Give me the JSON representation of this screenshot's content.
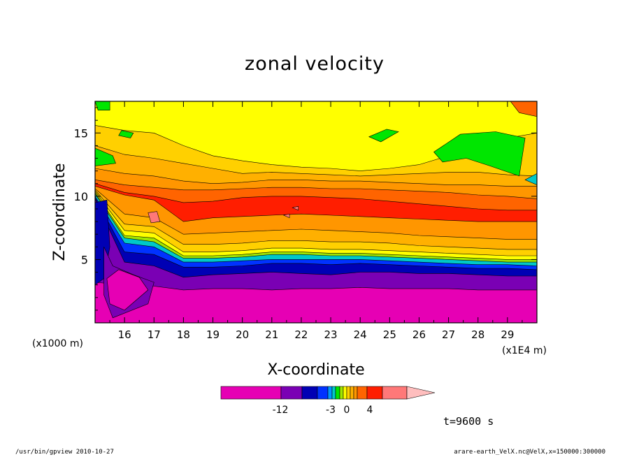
{
  "chart_data": {
    "type": "heatmap",
    "title": "zonal velocity",
    "xlabel": "X-coordinate",
    "ylabel": "Z-coordinate",
    "x_unit_label": "(x1E4 m)",
    "y_unit_label": "(x1000 m)",
    "x_ticks": [
      16,
      17,
      18,
      19,
      20,
      21,
      22,
      23,
      24,
      25,
      26,
      27,
      28,
      29
    ],
    "y_ticks": [
      5,
      10,
      15
    ],
    "xlim": [
      15,
      30
    ],
    "ylim": [
      0,
      17.5
    ],
    "colorbar": {
      "colors": [
        "#e600b4",
        "#7a00b4",
        "#0000b4",
        "#0032ff",
        "#0096ff",
        "#00c8c8",
        "#00e600",
        "#a0e600",
        "#ffff00",
        "#ffd000",
        "#ffb000",
        "#ff9600",
        "#ff6400",
        "#ff1e00",
        "#ff7878",
        "#ffbebe"
      ],
      "labels": [
        "-12",
        "-3",
        "0",
        "4"
      ]
    },
    "bands": [
      {
        "color": "#e600b4",
        "depth": [
          0.0,
          0.0,
          0.0,
          0.0,
          0.0,
          0.0,
          0.0,
          0.0,
          0.0,
          0.0,
          0.0,
          0.0,
          0.0,
          0.0,
          0.0,
          0.0
        ]
      },
      {
        "color": "#7a00b4",
        "depth": [
          3.2,
          3.0,
          2.9,
          2.6,
          2.7,
          2.7,
          2.6,
          2.7,
          2.7,
          2.8,
          2.7,
          2.7,
          2.7,
          2.6,
          2.6,
          2.6
        ]
      },
      {
        "color": "#0000b4",
        "depth": [
          9.8,
          4.8,
          4.5,
          3.6,
          3.8,
          3.9,
          4.0,
          3.9,
          3.8,
          4.0,
          4.0,
          3.9,
          3.9,
          3.8,
          3.7,
          3.7
        ]
      },
      {
        "color": "#0032ff",
        "depth": [
          9.9,
          5.6,
          5.4,
          4.4,
          4.4,
          4.5,
          4.7,
          4.7,
          4.6,
          4.7,
          4.6,
          4.5,
          4.4,
          4.3,
          4.3,
          4.2
        ]
      },
      {
        "color": "#00c8c8",
        "depth": [
          10.0,
          6.3,
          6.0,
          4.8,
          4.8,
          4.9,
          5.0,
          5.0,
          5.0,
          5.0,
          4.9,
          4.8,
          4.7,
          4.6,
          4.6,
          4.5
        ]
      },
      {
        "color": "#a0e600",
        "depth": [
          10.2,
          6.7,
          6.4,
          5.1,
          5.1,
          5.2,
          5.4,
          5.4,
          5.3,
          5.3,
          5.2,
          5.1,
          5.0,
          4.9,
          4.8,
          4.8
        ]
      },
      {
        "color": "#ffff00",
        "depth": [
          10.3,
          6.9,
          6.7,
          5.3,
          5.3,
          5.4,
          5.6,
          5.6,
          5.5,
          5.5,
          5.4,
          5.3,
          5.2,
          5.1,
          5.0,
          5.0
        ]
      },
      {
        "color": "#ffd000",
        "depth": [
          10.4,
          7.3,
          7.1,
          5.6,
          5.6,
          5.7,
          5.9,
          5.9,
          5.8,
          5.8,
          5.7,
          5.6,
          5.5,
          5.4,
          5.3,
          5.3
        ]
      },
      {
        "color": "#ffb000",
        "depth": [
          10.5,
          7.8,
          7.6,
          6.2,
          6.2,
          6.3,
          6.5,
          6.5,
          6.4,
          6.4,
          6.3,
          6.1,
          6.0,
          5.9,
          5.8,
          5.8
        ]
      },
      {
        "color": "#ff9600",
        "depth": [
          10.6,
          8.6,
          8.3,
          7.0,
          7.1,
          7.2,
          7.3,
          7.4,
          7.3,
          7.2,
          7.1,
          6.9,
          6.8,
          6.7,
          6.6,
          6.6
        ]
      },
      {
        "color": "#ff1e00",
        "depth": [
          10.8,
          10.1,
          9.7,
          8.0,
          8.3,
          8.4,
          8.5,
          8.6,
          8.5,
          8.4,
          8.3,
          8.2,
          8.1,
          8.0,
          8.0,
          8.0
        ]
      },
      {
        "color": "#ff6400",
        "depth": [
          11.0,
          10.3,
          10.0,
          9.5,
          9.6,
          9.9,
          10.0,
          10.0,
          9.9,
          9.8,
          9.6,
          9.4,
          9.2,
          9.0,
          8.9,
          8.9
        ]
      },
      {
        "color": "#ff9600",
        "depth": [
          11.3,
          10.9,
          10.7,
          10.5,
          10.5,
          10.6,
          10.7,
          10.7,
          10.6,
          10.6,
          10.5,
          10.4,
          10.3,
          10.1,
          10.0,
          9.8
        ]
      },
      {
        "color": "#ffb000",
        "depth": [
          12.2,
          11.8,
          11.6,
          11.2,
          11.0,
          11.1,
          11.3,
          11.3,
          11.2,
          11.2,
          11.1,
          11.0,
          10.9,
          10.9,
          10.8,
          10.8
        ]
      },
      {
        "color": "#ffd000",
        "depth": [
          14.0,
          13.3,
          13.0,
          12.6,
          12.2,
          11.8,
          11.9,
          11.8,
          11.7,
          11.6,
          11.7,
          11.8,
          11.9,
          11.9,
          11.7,
          11.6
        ]
      },
      {
        "color": "#ffff00",
        "depth": [
          15.6,
          15.2,
          15.0,
          14.0,
          13.2,
          12.8,
          12.5,
          12.3,
          12.2,
          12.0,
          12.2,
          12.5,
          13.2,
          14.0,
          14.6,
          15.0
        ]
      }
    ],
    "patches": [
      {
        "color": "#00e600",
        "points": [
          [
            15.0,
            17.5
          ],
          [
            15.5,
            17.5
          ],
          [
            15.5,
            16.8
          ],
          [
            15.1,
            16.8
          ]
        ]
      },
      {
        "color": "#00e600",
        "points": [
          [
            15.0,
            13.8
          ],
          [
            15.6,
            13.2
          ],
          [
            15.7,
            12.6
          ],
          [
            15.0,
            12.4
          ]
        ]
      },
      {
        "color": "#00e600",
        "points": [
          [
            15.9,
            15.2
          ],
          [
            16.3,
            15.0
          ],
          [
            16.2,
            14.6
          ],
          [
            15.8,
            14.8
          ]
        ]
      },
      {
        "color": "#00e600",
        "points": [
          [
            24.3,
            14.7
          ],
          [
            24.9,
            15.3
          ],
          [
            25.3,
            15.1
          ],
          [
            24.7,
            14.3
          ]
        ]
      },
      {
        "color": "#00e600",
        "points": [
          [
            26.5,
            13.5
          ],
          [
            27.4,
            14.9
          ],
          [
            28.6,
            15.1
          ],
          [
            29.6,
            14.6
          ],
          [
            29.4,
            11.6
          ],
          [
            28.4,
            12.4
          ],
          [
            27.6,
            13.0
          ],
          [
            26.8,
            12.7
          ]
        ]
      },
      {
        "color": "#00c8c8",
        "points": [
          [
            29.6,
            11.3
          ],
          [
            30.0,
            10.9
          ],
          [
            30.0,
            11.8
          ]
        ]
      },
      {
        "color": "#ff6400",
        "points": [
          [
            29.1,
            17.5
          ],
          [
            30.0,
            17.5
          ],
          [
            30.0,
            16.3
          ],
          [
            29.4,
            16.6
          ]
        ]
      },
      {
        "color": "#ff7878",
        "points": [
          [
            16.8,
            8.7
          ],
          [
            17.1,
            8.8
          ],
          [
            17.2,
            8.0
          ],
          [
            16.9,
            7.9
          ]
        ]
      },
      {
        "color": "#ff7878",
        "points": [
          [
            21.7,
            9.1
          ],
          [
            21.9,
            9.2
          ],
          [
            21.9,
            8.9
          ]
        ]
      },
      {
        "color": "#ff7878",
        "points": [
          [
            21.4,
            8.5
          ],
          [
            21.6,
            8.6
          ],
          [
            21.6,
            8.3
          ]
        ]
      },
      {
        "color": "#0000b4",
        "points": [
          [
            15.0,
            9.5
          ],
          [
            15.4,
            9.7
          ],
          [
            15.5,
            6.0
          ],
          [
            15.3,
            3.5
          ],
          [
            15.0,
            3.0
          ]
        ]
      },
      {
        "color": "#7a00b4",
        "points": [
          [
            15.3,
            6.0
          ],
          [
            15.6,
            4.5
          ],
          [
            16.3,
            3.8
          ],
          [
            17.0,
            3.2
          ],
          [
            16.8,
            1.5
          ],
          [
            15.6,
            0.4
          ],
          [
            15.3,
            2.2
          ]
        ]
      },
      {
        "color": "#e600b4",
        "points": [
          [
            15.4,
            3.5
          ],
          [
            15.8,
            4.2
          ],
          [
            16.5,
            3.6
          ],
          [
            16.8,
            2.6
          ],
          [
            16.0,
            1.0
          ],
          [
            15.5,
            1.5
          ]
        ]
      }
    ]
  },
  "time_label": "t=9600 s",
  "footer_left": "/usr/bin/gpview  2010-10-27",
  "footer_right": "arare-earth_VelX.nc@VelX,x=150000:300000"
}
